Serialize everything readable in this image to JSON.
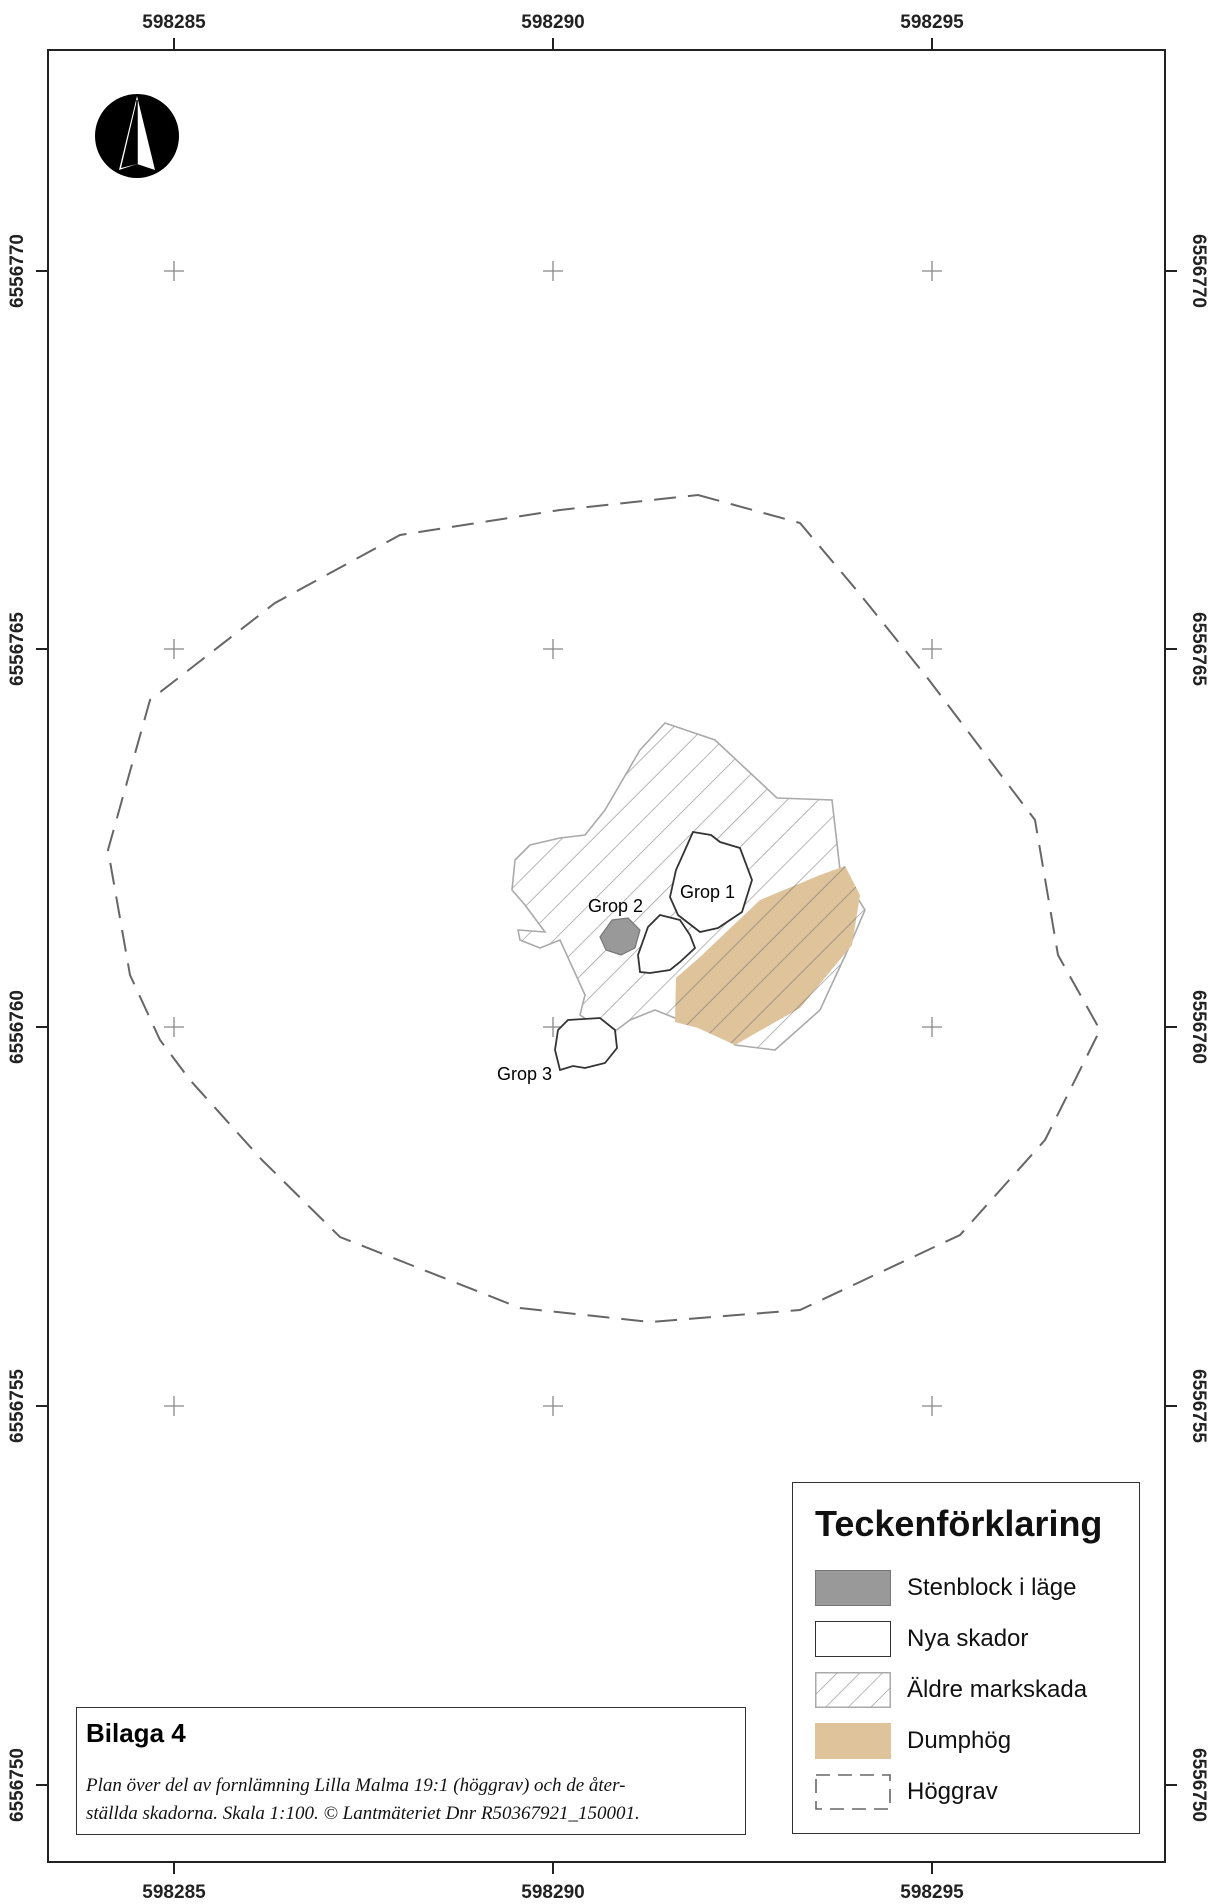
{
  "axes": {
    "x_ticks": [
      "598285",
      "598290",
      "598295"
    ],
    "y_ticks": [
      "6556770",
      "6556765",
      "6556760",
      "6556755",
      "6556750"
    ]
  },
  "features": {
    "grop1": "Grop 1",
    "grop2": "Grop 2",
    "grop3": "Grop 3"
  },
  "legend": {
    "title": "Teckenförklaring",
    "items": [
      {
        "label": "Stenblock i läge",
        "color": "#999999"
      },
      {
        "label": "Nya skador",
        "color": "#ffffff"
      },
      {
        "label": "Äldre markskada",
        "color": "#aaaaaa"
      },
      {
        "label": "Dumphög",
        "color": "#dfc39b"
      },
      {
        "label": "Höggrav",
        "color": "#666666"
      }
    ]
  },
  "caption": {
    "title": "Bilaga 4",
    "line1": "Plan över del av fornlämning Lilla Malma 19:1 (höggrav) och de åter-",
    "line2": "ställda skadorna. Skala 1:100. © Lantmäteriet Dnr R50367921_150001."
  },
  "colors": {
    "boulder": "#999999",
    "dump": "#dfc39b",
    "hatch": "#aaaaaa",
    "mound": "#666666"
  }
}
